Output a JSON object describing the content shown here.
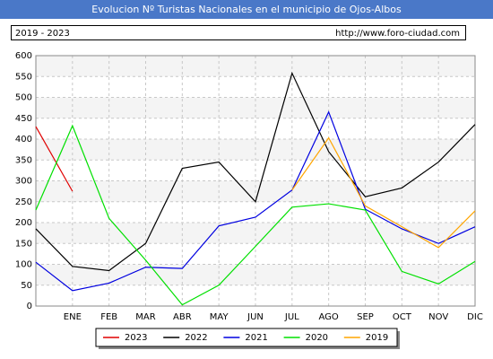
{
  "chart_data": {
    "type": "line",
    "title": "Evolucion Nº Turistas Nacionales en el municipio de Ojos-Albos",
    "subtitle": "2019 - 2023",
    "source": "http://www.foro-ciudad.com",
    "categories": [
      null,
      "ENE",
      "FEB",
      "MAR",
      "ABR",
      "MAY",
      "JUN",
      "JUL",
      "AGO",
      "SEP",
      "OCT",
      "NOV",
      "DIC"
    ],
    "series": [
      {
        "name": "2023",
        "color": "#e00000",
        "values": [
          430,
          275,
          null,
          null,
          null,
          null,
          null,
          null,
          null,
          null,
          null,
          null,
          null
        ]
      },
      {
        "name": "2022",
        "color": "#000000",
        "values": [
          185,
          95,
          85,
          150,
          330,
          345,
          250,
          558,
          370,
          262,
          283,
          345,
          435
        ]
      },
      {
        "name": "2021",
        "color": "#0000e0",
        "values": [
          105,
          37,
          55,
          93,
          90,
          192,
          213,
          278,
          465,
          232,
          185,
          150,
          190
        ]
      },
      {
        "name": "2020",
        "color": "#00e000",
        "values": [
          230,
          432,
          210,
          110,
          3,
          50,
          143,
          237,
          245,
          230,
          83,
          53,
          107
        ]
      },
      {
        "name": "2019",
        "color": "#ffa500",
        "values": [
          null,
          null,
          null,
          null,
          null,
          null,
          null,
          278,
          403,
          240,
          190,
          140,
          228
        ]
      }
    ],
    "ylim": [
      0,
      600
    ],
    "yticks": [
      0,
      50,
      100,
      150,
      200,
      250,
      300,
      350,
      400,
      450,
      500,
      550,
      600
    ],
    "grid": true
  }
}
